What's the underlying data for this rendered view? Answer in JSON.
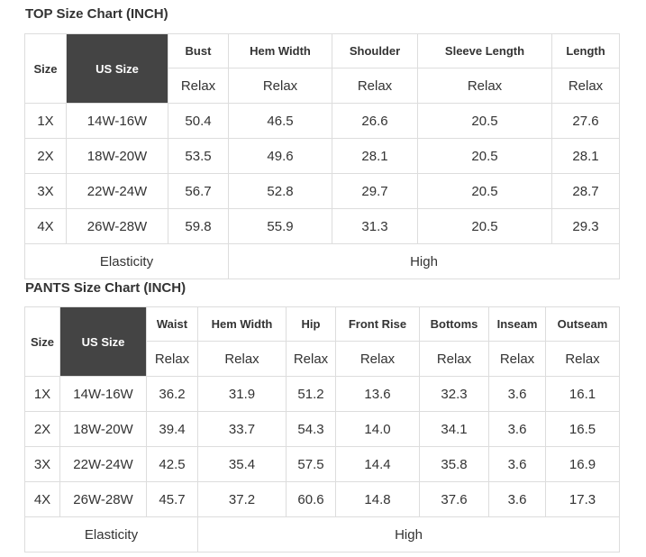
{
  "top_chart": {
    "title": "TOP Size Chart (INCH)",
    "header": {
      "size": "Size",
      "us_size": "US Size",
      "columns": [
        "Bust",
        "Hem Width",
        "Shoulder",
        "Sleeve Length",
        "Length"
      ]
    },
    "subheader": [
      "Relax",
      "Relax",
      "Relax",
      "Relax",
      "Relax"
    ],
    "rows": [
      [
        "1X",
        "14W-16W",
        "50.4",
        "46.5",
        "26.6",
        "20.5",
        "27.6"
      ],
      [
        "2X",
        "18W-20W",
        "53.5",
        "49.6",
        "28.1",
        "20.5",
        "28.1"
      ],
      [
        "3X",
        "22W-24W",
        "56.7",
        "52.8",
        "29.7",
        "20.5",
        "28.7"
      ],
      [
        "4X",
        "26W-28W",
        "59.8",
        "55.9",
        "31.3",
        "20.5",
        "29.3"
      ]
    ],
    "footer": {
      "label": "Elasticity",
      "value": "High"
    }
  },
  "pants_chart": {
    "title": "PANTS Size Chart (INCH)",
    "header": {
      "size": "Size",
      "us_size": "US Size",
      "columns": [
        "Waist",
        "Hem Width",
        "Hip",
        "Front Rise",
        "Bottoms",
        "Inseam",
        "Outseam"
      ]
    },
    "subheader": [
      "Relax",
      "Relax",
      "Relax",
      "Relax",
      "Relax",
      "Relax",
      "Relax"
    ],
    "rows": [
      [
        "1X",
        "14W-16W",
        "36.2",
        "31.9",
        "51.2",
        "13.6",
        "32.3",
        "3.6",
        "16.1"
      ],
      [
        "2X",
        "18W-20W",
        "39.4",
        "33.7",
        "54.3",
        "14.0",
        "34.1",
        "3.6",
        "16.5"
      ],
      [
        "3X",
        "22W-24W",
        "42.5",
        "35.4",
        "57.5",
        "14.4",
        "35.8",
        "3.6",
        "16.9"
      ],
      [
        "4X",
        "26W-28W",
        "45.7",
        "37.2",
        "60.6",
        "14.8",
        "37.6",
        "3.6",
        "17.3"
      ]
    ],
    "footer": {
      "label": "Elasticity",
      "value": "High"
    }
  }
}
